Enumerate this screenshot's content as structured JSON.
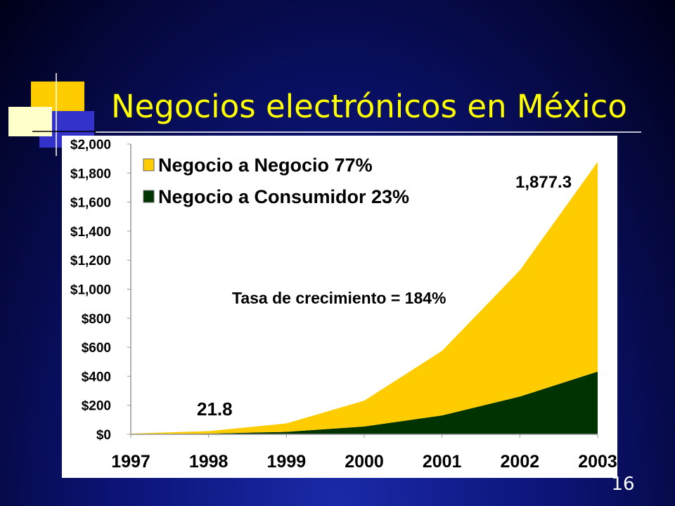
{
  "slide": {
    "title": "Negocios electrónicos en México",
    "page_number": "16"
  },
  "colors": {
    "background": "#0c1478",
    "title": "#ffff00",
    "series_b2b": "#ffcc00",
    "series_b2c": "#003300",
    "decoration_yellow": "#ffcc00",
    "decoration_blue": "#3333cc",
    "decoration_cream": "#ffffcc"
  },
  "chart_data": {
    "type": "area",
    "stacked": true,
    "x": [
      "1997",
      "1998",
      "1999",
      "2000",
      "2001",
      "2002",
      "2003"
    ],
    "series": [
      {
        "name": "Negocio a Consumidor  23%",
        "color": "#003300",
        "values": [
          2,
          5,
          17,
          54,
          130,
          260,
          432
        ]
      },
      {
        "name": "Negocio a Negocio  77%",
        "color": "#ffcc00",
        "values": [
          3,
          17,
          58,
          178,
          445,
          870,
          1445
        ]
      }
    ],
    "ylim": [
      0,
      2000
    ],
    "yticks": [
      "$0",
      "$200",
      "$400",
      "$600",
      "$800",
      "$1,000",
      "$1,200",
      "$1,400",
      "$1,600",
      "$1,800",
      "$2,000"
    ],
    "annotations": {
      "start_value": "21.8",
      "end_value": "1,877.3",
      "growth_rate": "Tasa de crecimiento = 184%"
    },
    "legend_position": "top-left",
    "grid": false
  }
}
